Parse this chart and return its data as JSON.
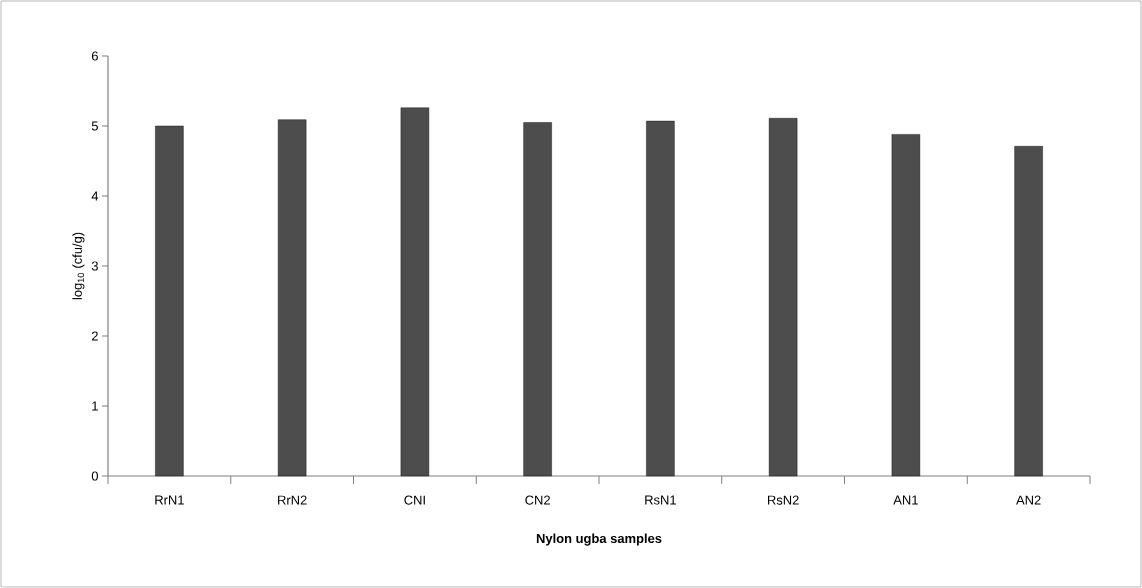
{
  "chart_data": {
    "type": "bar",
    "xlabel": "Nylon ugba samples",
    "ylabel": "log$_{10}$ (cfu/g)",
    "categories": [
      "RrN1",
      "RrN2",
      "CNI",
      "CN2",
      "RsN1",
      "RsN2",
      "AN1",
      "AN2"
    ],
    "values": [
      5.0,
      5.09,
      5.26,
      5.05,
      5.07,
      5.11,
      4.88,
      4.71
    ],
    "color": "#4d4d4d",
    "ylim": [
      0,
      6
    ],
    "yticks": [
      0,
      1,
      2,
      3,
      4,
      5,
      6
    ]
  }
}
